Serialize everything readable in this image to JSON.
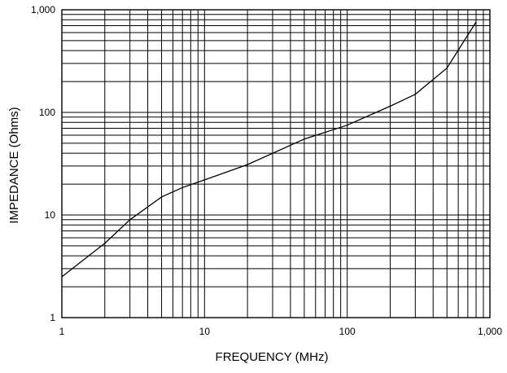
{
  "chart_data": {
    "type": "line",
    "title": "",
    "xlabel": "FREQUENCY (MHz)",
    "ylabel": "IMPEDANCE (Ohms)",
    "xscale": "log",
    "yscale": "log",
    "xlim": [
      1,
      1000
    ],
    "ylim": [
      1,
      1000
    ],
    "grid": true,
    "x_tick_labels": [
      "1",
      "10",
      "100",
      "1,000"
    ],
    "y_tick_labels": [
      "1",
      "10",
      "100",
      "1,000"
    ],
    "x_tick_values": [
      1,
      10,
      100,
      1000
    ],
    "y_tick_values": [
      1,
      10,
      100,
      1000
    ],
    "series": [
      {
        "x": [
          1,
          2,
          3,
          5,
          7,
          10,
          20,
          50,
          100,
          200,
          300,
          500,
          800
        ],
        "y": [
          2.5,
          5.3,
          9,
          15,
          18.5,
          22,
          31,
          55,
          75,
          115,
          150,
          270,
          760
        ]
      }
    ]
  }
}
